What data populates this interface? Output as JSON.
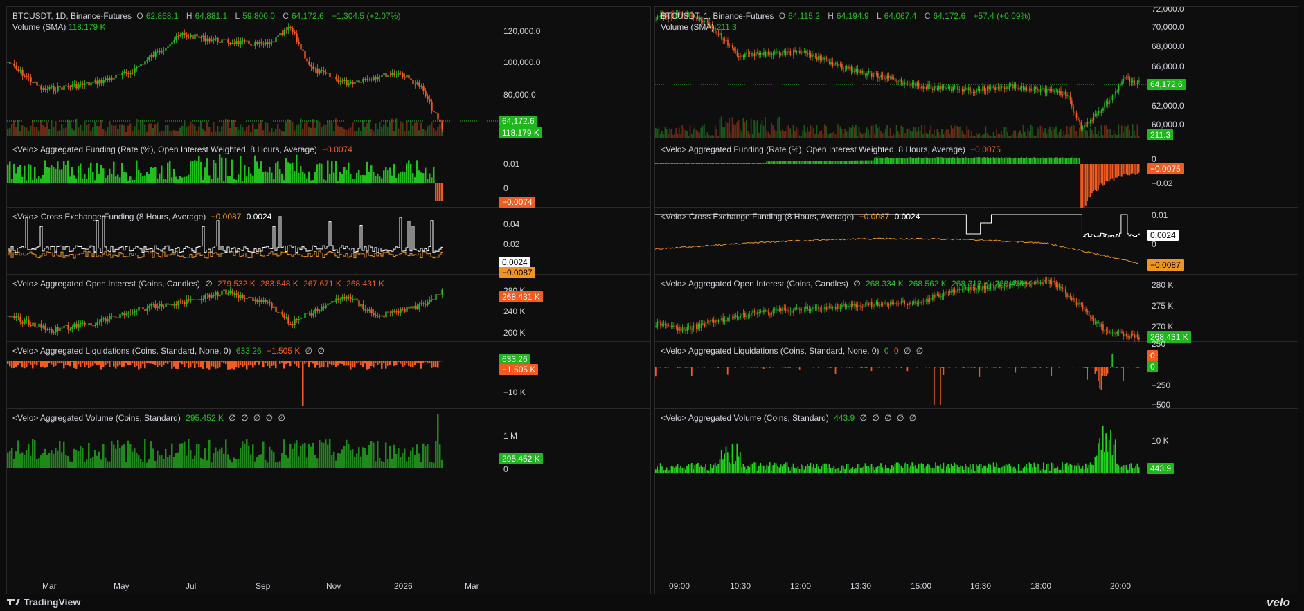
{
  "colors": {
    "up": "#22c01f",
    "down": "#f45b1d",
    "white_line": "#ffffff",
    "orange_line": "#f0951f",
    "bg": "#0e0e0e"
  },
  "left": {
    "main": {
      "symbol": "BTCUSDT, 1D, Binance-Futures",
      "o_label": "O",
      "o": "62,868.1",
      "h_label": "H",
      "h": "64,881.1",
      "l_label": "L",
      "l": "59,800.0",
      "c_label": "C",
      "c": "64,172.6",
      "chg": "+1,304.5 (+2.07%)",
      "volume_label": "Volume (SMA)",
      "volume": "118.179 K",
      "ticks": [
        "120,000.0",
        "100,000.0",
        "80,000.0"
      ],
      "price_tag": "64,172.6",
      "vol_tag": "118.179 K"
    },
    "funding": {
      "title": "<Velo> Aggregated Funding (Rate (%), Open Interest Weighted, 8 Hours, Average)",
      "value": "−0.0074",
      "ticks": [
        "0.01",
        "0"
      ],
      "tag": "−0.0074"
    },
    "cross": {
      "title": "<Velo> Cross Exchange Funding (8 Hours, Average)",
      "v1": "−0.0087",
      "v2": "0.0024",
      "ticks": [
        "0.04",
        "0.02"
      ],
      "tag_w": "0.0024",
      "tag_o": "−0.0087"
    },
    "oi": {
      "title": "<Velo> Aggregated Open Interest (Coins, Candles)",
      "null": "∅",
      "values": [
        "279.532 K",
        "283.548 K",
        "267.671 K",
        "268.431 K"
      ],
      "ticks": [
        "280 K",
        "240 K",
        "200 K"
      ],
      "tag": "268.431 K"
    },
    "liq": {
      "title": "<Velo> Aggregated Liquidations (Coins, Standard, None, 0)",
      "v1": "633.26",
      "v2": "−1.505 K",
      "nulls": [
        "∅",
        "∅"
      ],
      "ticks": [
        "−10 K"
      ],
      "tag_g": "633.26",
      "tag_r": "−1.505 K"
    },
    "vol": {
      "title": "<Velo> Aggregated Volume (Coins, Standard)",
      "value": "295.452 K",
      "nulls": [
        "∅",
        "∅",
        "∅",
        "∅",
        "∅"
      ],
      "ticks": [
        "1 M",
        "0"
      ],
      "tag": "295.452 K"
    },
    "time_labels": [
      "Mar",
      "May",
      "Jul",
      "Sep",
      "Nov",
      "2026",
      "Mar"
    ]
  },
  "right": {
    "main": {
      "symbol": "BTCUSDT, 1, Binance-Futures",
      "o_label": "O",
      "o": "64,115.2",
      "h_label": "H",
      "h": "64,194.9",
      "l_label": "L",
      "l": "64,067.4",
      "c_label": "C",
      "c": "64,172.6",
      "chg": "+57.4 (+0.09%)",
      "volume_label": "Volume (SMA)",
      "volume": "211.3",
      "ticks": [
        "72,000.0",
        "70,000.0",
        "68,000.0",
        "66,000.0",
        "62,000.0",
        "60,000.0"
      ],
      "price_tag": "64,172.6",
      "vol_tag": "211.3"
    },
    "funding": {
      "title": "<Velo> Aggregated Funding (Rate (%), Open Interest Weighted, 8 Hours, Average)",
      "value": "−0.0075",
      "ticks": [
        "0",
        "−0.02"
      ],
      "tag": "−0.0075"
    },
    "cross": {
      "title": "<Velo> Cross Exchange Funding (8 Hours, Average)",
      "v1": "−0.0087",
      "v2": "0.0024",
      "ticks": [
        "0.01",
        "0"
      ],
      "tag_w": "0.0024",
      "tag_o": "−0.0087"
    },
    "oi": {
      "title": "<Velo> Aggregated Open Interest (Coins, Candles)",
      "null": "∅",
      "values": [
        "268.334 K",
        "268.562 K",
        "268.313 K",
        "268.431 K"
      ],
      "ticks": [
        "280 K",
        "275 K",
        "270 K"
      ],
      "tag": "268.431 K"
    },
    "liq": {
      "title": "<Velo> Aggregated Liquidations (Coins, Standard, None, 0)",
      "v1": "0",
      "v2": "0",
      "nulls": [
        "∅",
        "∅"
      ],
      "ticks": [
        "250",
        "−250",
        "−500"
      ],
      "tag_r": "0",
      "tag_g": "0"
    },
    "vol": {
      "title": "<Velo> Aggregated Volume (Coins, Standard)",
      "value": "443.9",
      "nulls": [
        "∅",
        "∅",
        "∅",
        "∅",
        "∅"
      ],
      "ticks": [
        "10 K"
      ],
      "tag": "443.9"
    },
    "time_labels": [
      "09:00",
      "10:30",
      "12:00",
      "13:30",
      "15:00",
      "16:30",
      "18:00",
      "20:00"
    ]
  },
  "footer": {
    "brand": "TradingView",
    "velo": "velo"
  }
}
